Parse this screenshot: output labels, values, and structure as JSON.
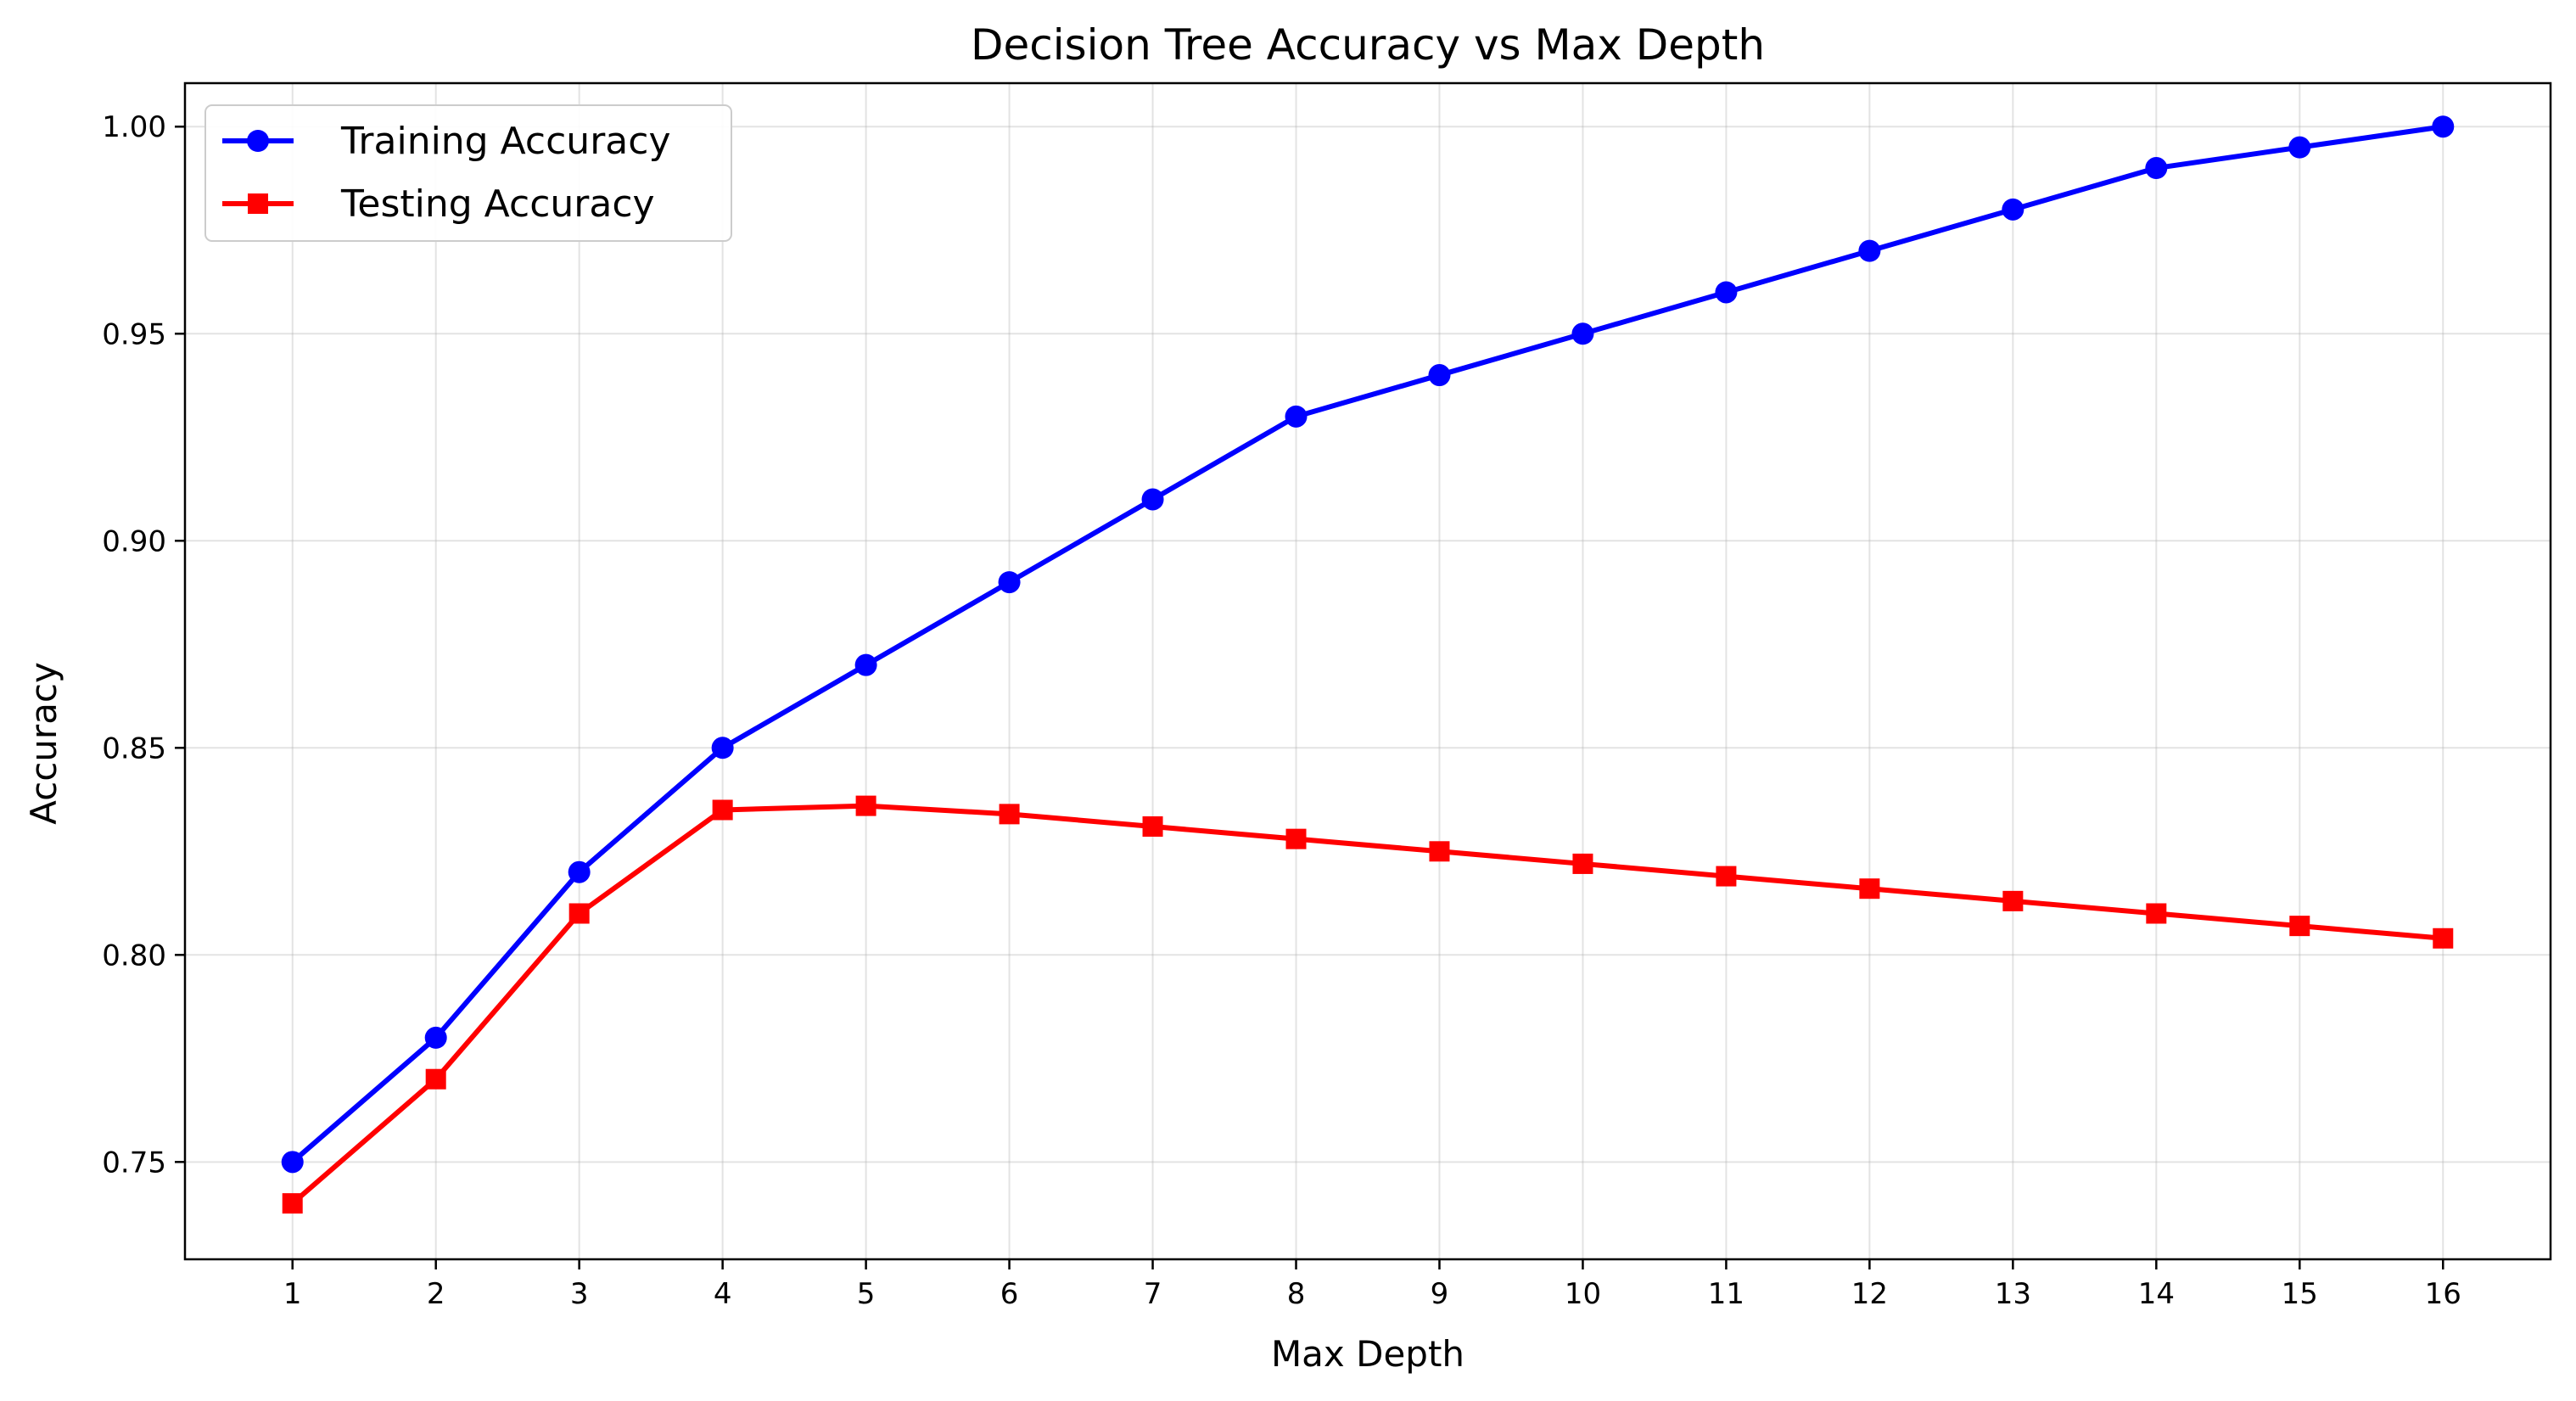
{
  "chart_data": {
    "type": "line",
    "title": "Decision Tree Accuracy vs Max Depth",
    "xlabel": "Max Depth",
    "ylabel": "Accuracy",
    "x": [
      1,
      2,
      3,
      4,
      5,
      6,
      7,
      8,
      9,
      10,
      11,
      12,
      13,
      14,
      15,
      16
    ],
    "xlim": [
      0.25,
      16.75
    ],
    "ylim": [
      0.7265,
      1.0105
    ],
    "yticks": [
      0.75,
      0.8,
      0.85,
      0.9,
      0.95,
      1.0
    ],
    "ytick_labels": [
      "0.75",
      "0.80",
      "0.85",
      "0.90",
      "0.95",
      "1.00"
    ],
    "grid": true,
    "legend_position": "top-left",
    "series": [
      {
        "name": "Training Accuracy",
        "color": "#0000ff",
        "marker": "circle",
        "values": [
          0.75,
          0.78,
          0.82,
          0.85,
          0.87,
          0.89,
          0.91,
          0.93,
          0.94,
          0.95,
          0.96,
          0.97,
          0.98,
          0.99,
          0.995,
          1.0
        ]
      },
      {
        "name": "Testing Accuracy",
        "color": "#ff0000",
        "marker": "square",
        "values": [
          0.74,
          0.77,
          0.81,
          0.835,
          0.836,
          0.834,
          0.831,
          0.828,
          0.825,
          0.822,
          0.819,
          0.816,
          0.813,
          0.81,
          0.807,
          0.804
        ]
      }
    ]
  }
}
